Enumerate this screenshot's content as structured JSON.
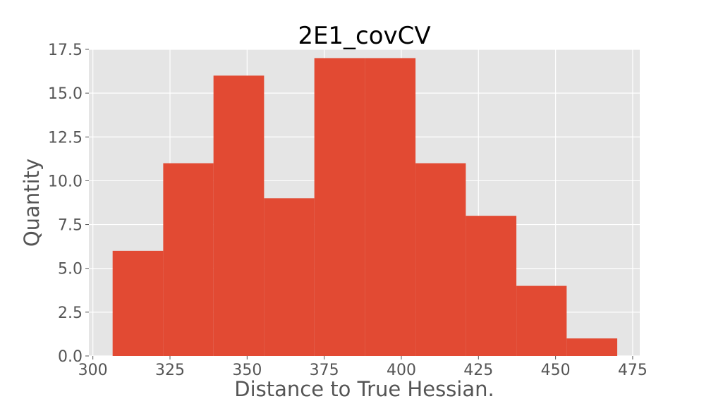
{
  "chart_data": {
    "type": "bar",
    "title": "2E1_covCV",
    "xlabel": "Distance to True Hessian.",
    "ylabel": "Quantity",
    "xlim": [
      298.7,
      477.3
    ],
    "ylim": [
      0,
      17.5
    ],
    "grid": true,
    "x_ticks": [
      300,
      325,
      350,
      375,
      400,
      425,
      450,
      475
    ],
    "x_tick_labels": [
      "300",
      "325",
      "350",
      "375",
      "400",
      "425",
      "450",
      "475"
    ],
    "y_ticks": [
      0,
      2.5,
      5,
      7.5,
      10,
      12.5,
      15,
      17.5
    ],
    "y_tick_labels": [
      "0.0",
      "2.5",
      "5.0",
      "7.5",
      "10.0",
      "12.5",
      "15.0",
      "17.5"
    ],
    "bin_edges": [
      306.4,
      322.8,
      339.1,
      355.5,
      371.8,
      388.2,
      404.6,
      420.9,
      437.3,
      453.6,
      470.0
    ],
    "values": [
      6,
      11,
      16,
      9,
      17,
      17,
      11,
      8,
      4,
      1
    ],
    "bar_color": "#E24A33",
    "background_color": "#E5E5E5",
    "grid_color": "#FFFFFF"
  }
}
